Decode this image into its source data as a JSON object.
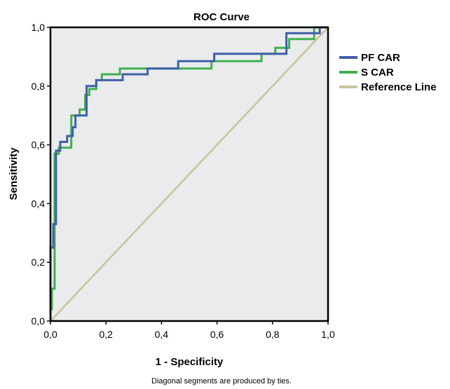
{
  "chart_data": {
    "type": "line",
    "title": "ROC Curve",
    "xlabel": "1 - Specificity",
    "ylabel": "Sensitivity",
    "xlim": [
      0,
      1
    ],
    "ylim": [
      0,
      1
    ],
    "x_ticks": [
      "0,0",
      "0,2",
      "0,4",
      "0,6",
      "0,8",
      "1,0"
    ],
    "y_ticks": [
      "0,0",
      "0,2",
      "0,4",
      "0,6",
      "0,8",
      "1,0"
    ],
    "x_tick_values": [
      0,
      0.2,
      0.4,
      0.6,
      0.8,
      1.0
    ],
    "y_tick_values": [
      0,
      0.2,
      0.4,
      0.6,
      0.8,
      1.0
    ],
    "grid": false,
    "legend_position": "right",
    "plot_background": "#e9ebec",
    "series": [
      {
        "name": "PF CAR",
        "color": "#4060a8",
        "x": [
          0,
          0,
          0.01,
          0.01,
          0.02,
          0.02,
          0.035,
          0.035,
          0.06,
          0.06,
          0.08,
          0.08,
          0.09,
          0.09,
          0.13,
          0.13,
          0.165,
          0.165,
          0.26,
          0.26,
          0.35,
          0.35,
          0.46,
          0.46,
          0.59,
          0.59,
          0.85,
          0.85,
          0.97,
          0.97,
          1.0
        ],
        "y": [
          0,
          0.25,
          0.25,
          0.33,
          0.33,
          0.58,
          0.58,
          0.61,
          0.61,
          0.63,
          0.63,
          0.66,
          0.66,
          0.7,
          0.7,
          0.8,
          0.8,
          0.82,
          0.82,
          0.84,
          0.84,
          0.86,
          0.86,
          0.885,
          0.885,
          0.91,
          0.91,
          0.98,
          0.98,
          1.0,
          1.0
        ]
      },
      {
        "name": "S CAR",
        "color": "#40b050",
        "x": [
          0,
          0,
          0.005,
          0.005,
          0.015,
          0.015,
          0.03,
          0.03,
          0.04,
          0.04,
          0.04,
          0.075,
          0.075,
          0.105,
          0.105,
          0.125,
          0.125,
          0.14,
          0.14,
          0.165,
          0.165,
          0.185,
          0.185,
          0.25,
          0.25,
          0.29,
          0.29,
          0.58,
          0.58,
          0.76,
          0.76,
          0.81,
          0.81,
          0.86,
          0.86,
          0.87,
          0.87,
          0.95,
          0.95,
          1.0
        ],
        "y": [
          0,
          0.04,
          0.04,
          0.11,
          0.11,
          0.57,
          0.57,
          0.59,
          0.59,
          0.59,
          0.59,
          0.59,
          0.7,
          0.7,
          0.72,
          0.72,
          0.77,
          0.77,
          0.79,
          0.79,
          0.82,
          0.82,
          0.84,
          0.84,
          0.86,
          0.86,
          0.86,
          0.86,
          0.885,
          0.885,
          0.91,
          0.91,
          0.93,
          0.93,
          0.96,
          0.96,
          0.96,
          0.96,
          1.0,
          1.0
        ]
      },
      {
        "name": "Reference Line",
        "color": "#c9c49a",
        "x": [
          0,
          1
        ],
        "y": [
          0,
          1
        ]
      }
    ],
    "footnote": "Diagonal segments are produced by ties."
  }
}
